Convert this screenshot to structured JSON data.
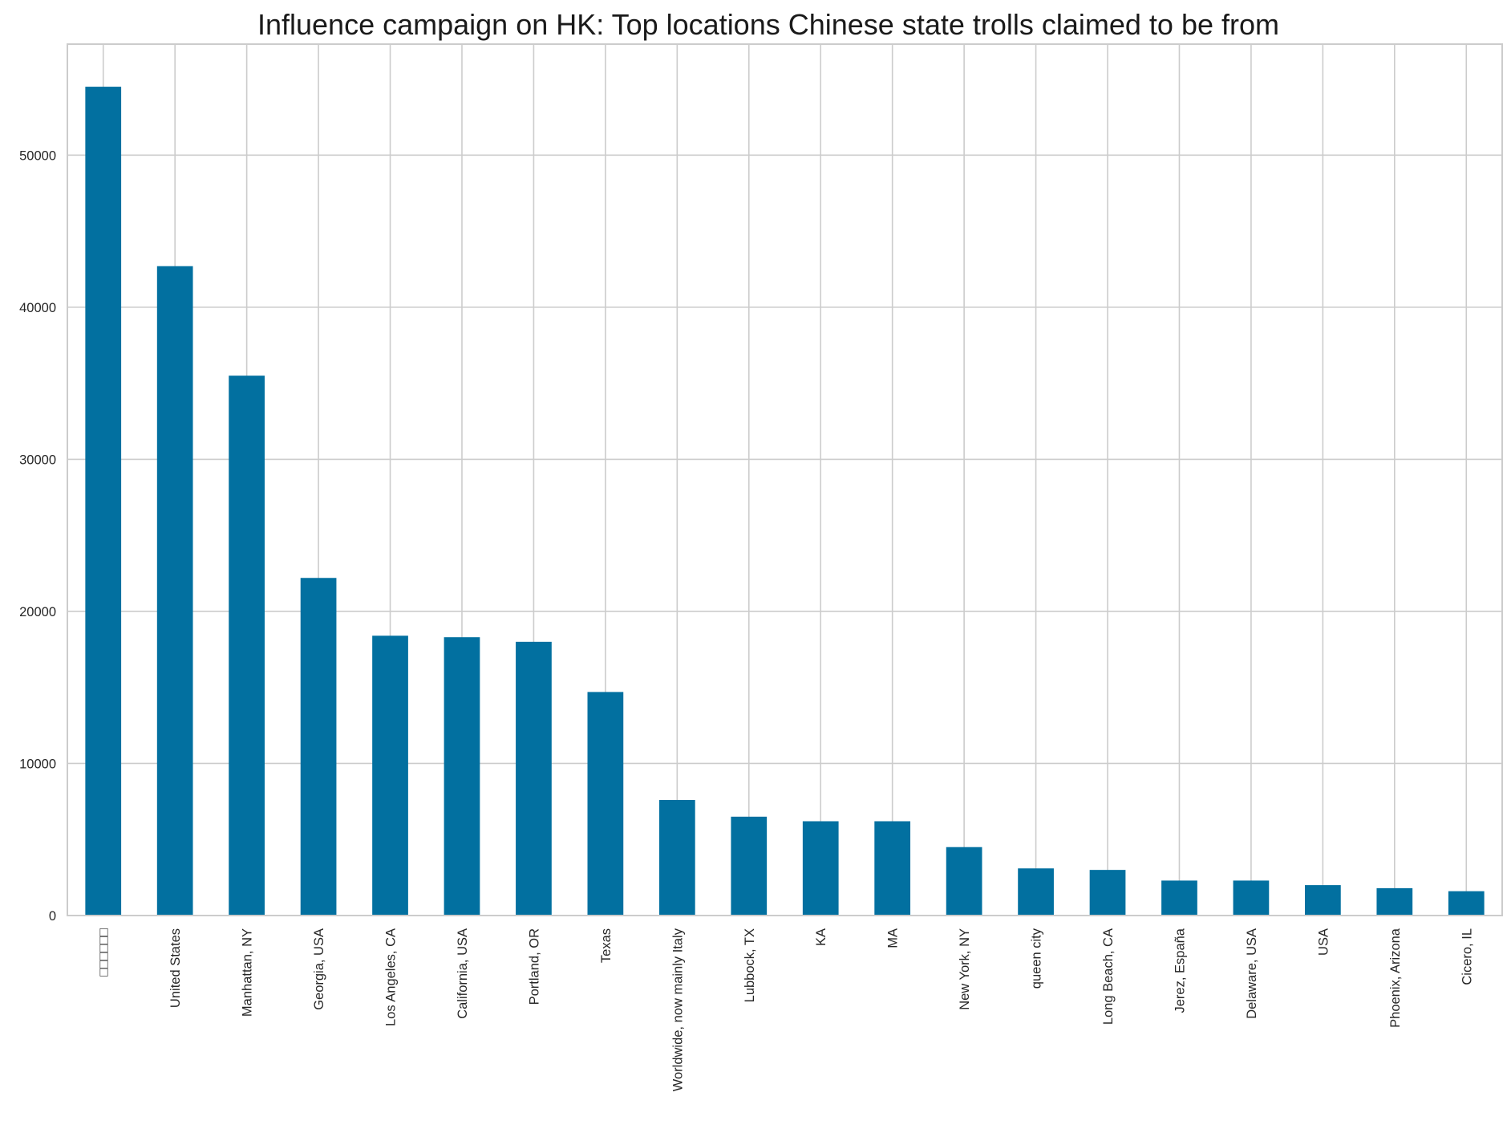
{
  "chart_data": {
    "type": "bar",
    "title": "Influence campaign on HK: Top locations Chinese state trolls claimed to be from",
    "xlabel": "",
    "ylabel": "",
    "categories": [
      "□□□□□□",
      "United States",
      "Manhattan, NY",
      "Georgia, USA",
      "Los Angeles, CA",
      "California, USA",
      "Portland, OR",
      "Texas",
      "Worldwide, now mainly Italy",
      "Lubbock, TX",
      "KA",
      "MA",
      "New York, NY",
      "queen city",
      "Long Beach, CA",
      "Jerez, España",
      "Delaware, USA",
      "USA",
      "Phoenix, Arizona",
      "Cicero, IL"
    ],
    "values": [
      54500,
      42700,
      35500,
      22200,
      18400,
      18300,
      18000,
      14700,
      7600,
      6500,
      6200,
      6200,
      4500,
      3100,
      3000,
      2300,
      2300,
      2000,
      1800,
      1600
    ],
    "ylim": [
      0,
      57300
    ],
    "yticks": [
      0,
      10000,
      20000,
      30000,
      40000,
      50000
    ],
    "ytick_labels": [
      "0",
      "10000",
      "20000",
      "30000",
      "40000",
      "50000"
    ],
    "grid": true,
    "legend": "none",
    "bar_color": "#0270a0",
    "grid_color": "#cccccc"
  }
}
